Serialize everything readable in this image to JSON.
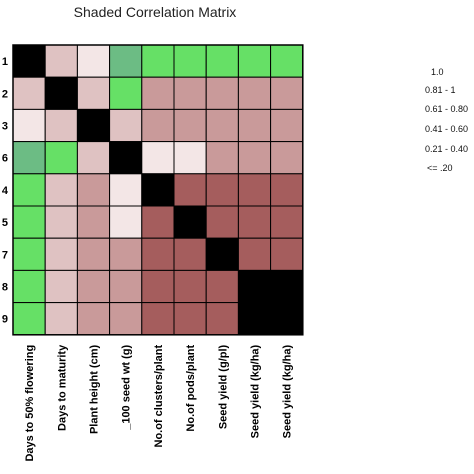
{
  "chart_data": {
    "type": "heatmap",
    "title": "Shaded Correlation Matrix",
    "row_labels": [
      "1",
      "2",
      "3",
      "6",
      "4",
      "5",
      "7",
      "8",
      "9"
    ],
    "column_labels": [
      "Days to 50% flowering",
      "Days to maturity",
      "Plant height (cm)",
      "_100 seed wt (g)",
      "No.of clusters/plant",
      "No.of pods/plant",
      "Seed yield (g/pl)",
      "Seed yield (kg/ha)",
      "Seed yield (kg/ha)"
    ],
    "legend": {
      "position": "right",
      "items": [
        "1.0",
        "0.81 - 1",
        "0.61 - 0.80",
        "0.41 - 0.60",
        "0.21 - 0.40",
        "<= .20"
      ]
    },
    "cells": [
      [
        "k",
        "l2",
        "l1",
        "g2",
        "g",
        "g",
        "g",
        "g",
        "g"
      ],
      [
        "l2",
        "k",
        "l2",
        "g",
        "l3",
        "l3",
        "l3",
        "l3",
        "l3"
      ],
      [
        "l1",
        "l2",
        "k",
        "l2",
        "l3",
        "l3",
        "l3",
        "l3",
        "l3"
      ],
      [
        "g2",
        "g",
        "l2",
        "k",
        "l1",
        "l1",
        "l3",
        "l3",
        "l3"
      ],
      [
        "g",
        "l2",
        "l3",
        "l1",
        "k",
        "d",
        "d",
        "d",
        "d"
      ],
      [
        "g",
        "l2",
        "l3",
        "l1",
        "d",
        "k",
        "d",
        "d",
        "d"
      ],
      [
        "g",
        "l2",
        "l3",
        "l3",
        "d",
        "d",
        "k",
        "d",
        "d"
      ],
      [
        "g",
        "l2",
        "l3",
        "l3",
        "d",
        "d",
        "d",
        "k",
        "k"
      ],
      [
        "g",
        "l2",
        "l3",
        "l3",
        "d",
        "d",
        "d",
        "k",
        "k"
      ]
    ],
    "colors": {
      "k": "#000000",
      "g": "#66e066",
      "g2": "#6cbc84",
      "l1": "#f3e6e6",
      "l2": "#dfc2c2",
      "l3": "#c99a9a",
      "d": "#a55d5d"
    }
  }
}
